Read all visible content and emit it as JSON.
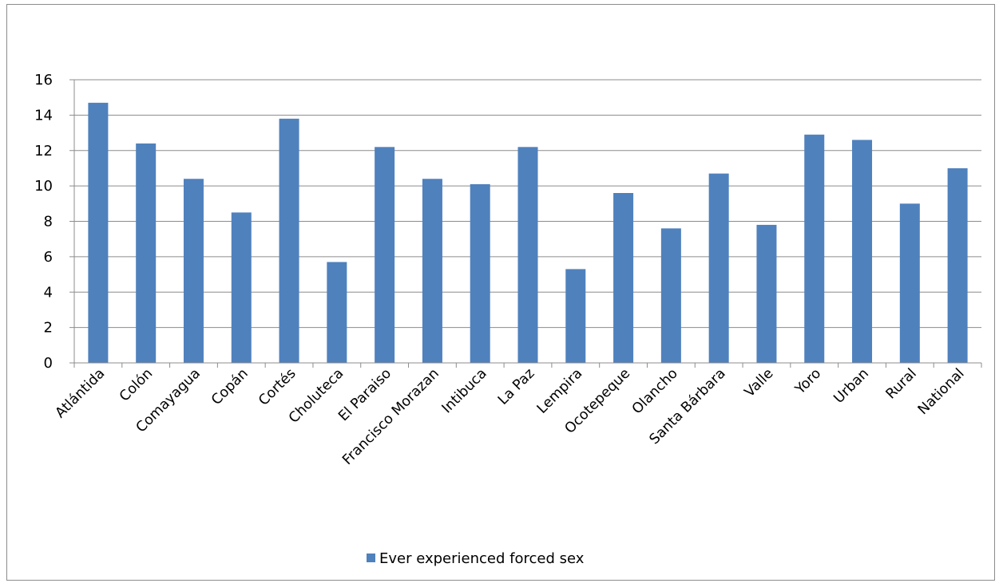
{
  "chart_data": {
    "type": "bar",
    "categories": [
      "Atlántida",
      "Colón",
      "Comayagua",
      "Copán",
      "Cortés",
      "Choluteca",
      "El Paraiso",
      "Francisco Morazan",
      "Intibuca",
      "La Paz",
      "Lempira",
      "Ocotepeque",
      "Olancho",
      "Santa Bárbara",
      "Valle",
      "Yoro",
      "Urban",
      "Rural",
      "National"
    ],
    "series": [
      {
        "name": "Ever experienced forced sex",
        "values": [
          14.7,
          12.4,
          10.4,
          8.5,
          13.8,
          5.7,
          12.2,
          10.4,
          10.1,
          12.2,
          5.3,
          9.6,
          7.6,
          10.7,
          7.8,
          12.9,
          12.6,
          9.0,
          11.0
        ],
        "color": "#4f81bd"
      }
    ],
    "ylim": [
      0,
      16
    ],
    "yticks": [
      0,
      2,
      4,
      6,
      8,
      10,
      12,
      14,
      16
    ],
    "grid": true,
    "legend_position": "bottom"
  }
}
